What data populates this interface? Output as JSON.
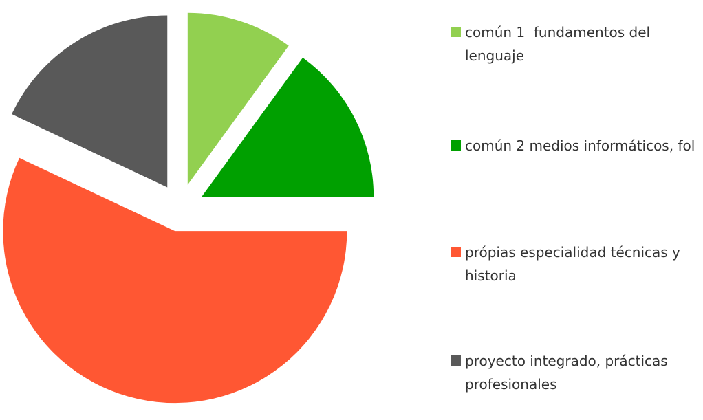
{
  "chart_data": {
    "type": "pie",
    "categories": [
      "común 1  fundamentos del lenguaje",
      "común 2 medios informáticos, fol",
      "própias especialidad técnicas y historia",
      "proyecto integrado, prácticas profesionales"
    ],
    "values": [
      10,
      15,
      57,
      18
    ],
    "colors": [
      "#92d050",
      "#00a000",
      "#ff5733",
      "#595959"
    ],
    "exploded": true,
    "legend": "right"
  }
}
